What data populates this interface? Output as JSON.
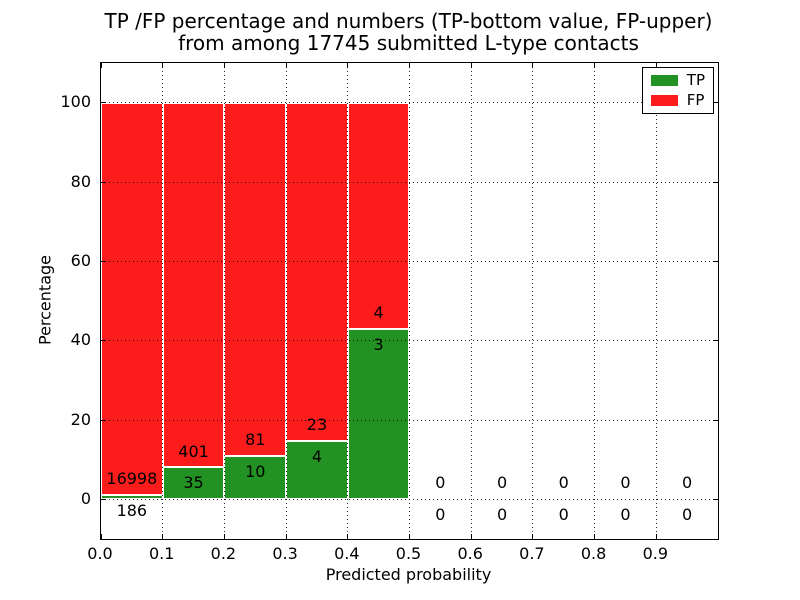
{
  "chart_data": {
    "type": "bar",
    "stacked": true,
    "title_lines": [
      "TP /FP percentage and numbers (TP-bottom value, FP-upper)",
      "from among 17745 submitted L-type contacts"
    ],
    "xlabel": "Predicted probability",
    "ylabel": "Percentage",
    "xlim": [
      0.0,
      1.0
    ],
    "ylim": [
      -10,
      110
    ],
    "bin_width": 0.1,
    "x_tick_values": [
      0.0,
      0.1,
      0.2,
      0.3,
      0.4,
      0.5,
      0.6,
      0.7,
      0.8,
      0.9
    ],
    "x_tick_labels": [
      "0.0",
      "0.1",
      "0.2",
      "0.3",
      "0.4",
      "0.5",
      "0.6",
      "0.7",
      "0.8",
      "0.9"
    ],
    "y_ticks": [
      0,
      20,
      40,
      60,
      80,
      100
    ],
    "grid": "dotted",
    "total_contacts": 17745,
    "series": [
      {
        "name": "TP",
        "color": "#229322",
        "counts": [
          186,
          35,
          10,
          4,
          3,
          0,
          0,
          0,
          0,
          0
        ]
      },
      {
        "name": "FP",
        "color": "#fc1c1c",
        "counts": [
          16998,
          401,
          81,
          23,
          4,
          0,
          0,
          0,
          0,
          0
        ]
      }
    ],
    "bar_percentages_tp": [
      1.08,
      8.03,
      10.99,
      14.81,
      42.86,
      0,
      0,
      0,
      0,
      0
    ],
    "legend": {
      "position": "upper right",
      "entries": [
        "TP",
        "FP"
      ]
    },
    "annotation_rule": "FP count printed above TP/FP boundary, TP count printed below it"
  }
}
